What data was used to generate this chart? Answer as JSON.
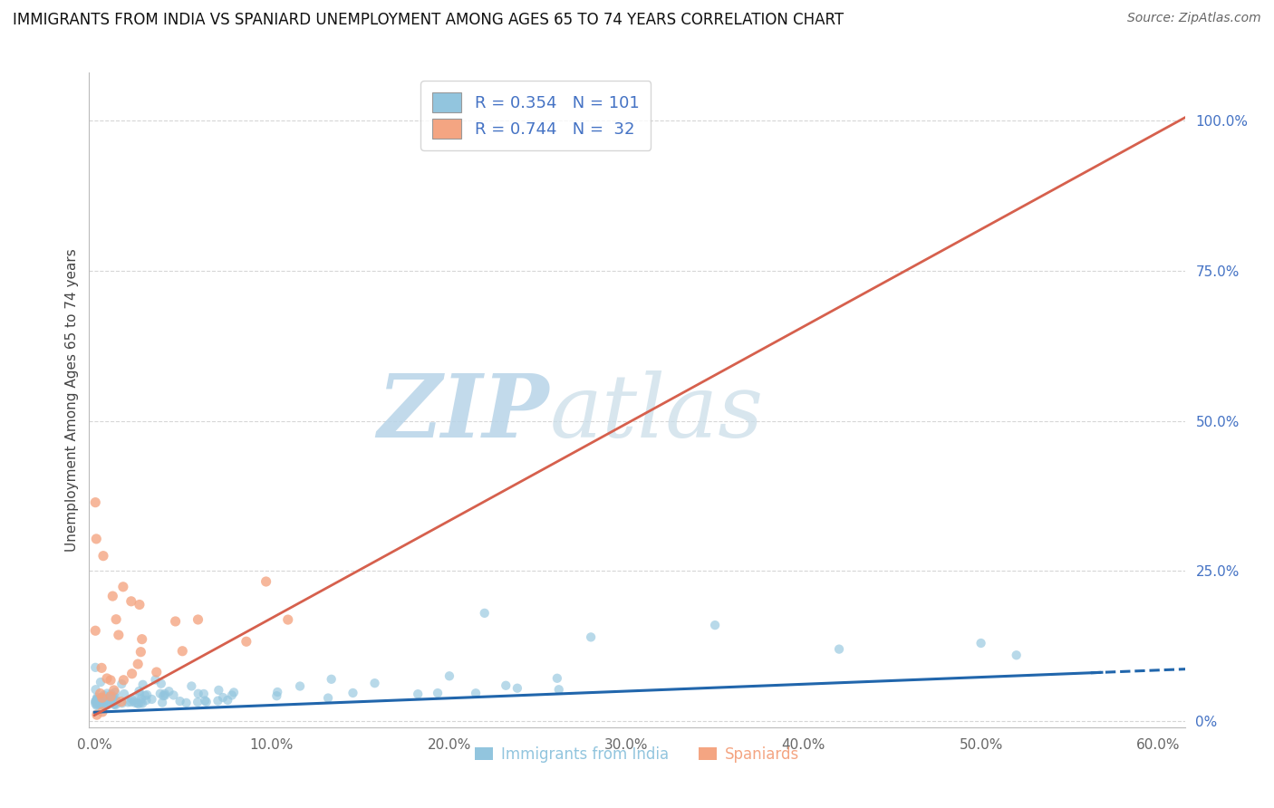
{
  "title": "IMMIGRANTS FROM INDIA VS SPANIARD UNEMPLOYMENT AMONG AGES 65 TO 74 YEARS CORRELATION CHART",
  "source": "Source: ZipAtlas.com",
  "ylabel": "Unemployment Among Ages 65 to 74 years",
  "legend_label1": "Immigrants from India",
  "legend_label2": "Spaniards",
  "R1": 0.354,
  "N1": 101,
  "R2": 0.744,
  "N2": 32,
  "color1": "#92c5de",
  "color2": "#f4a582",
  "line_color1": "#2166ac",
  "line_color2": "#d6604d",
  "xlim": [
    -0.003,
    0.615
  ],
  "ylim": [
    -0.01,
    1.08
  ],
  "xtick_vals": [
    0.0,
    0.1,
    0.2,
    0.3,
    0.4,
    0.5,
    0.6
  ],
  "xtick_labels": [
    "0.0%",
    "10.0%",
    "20.0%",
    "30.0%",
    "40.0%",
    "50.0%",
    "60.0%"
  ],
  "ytick_vals_right": [
    0.0,
    0.25,
    0.5,
    0.75,
    1.0
  ],
  "ytick_labels_right": [
    "0%",
    "25.0%",
    "50.0%",
    "75.0%",
    "100.0%"
  ],
  "watermark_zip": "ZIP",
  "watermark_atlas": "atlas",
  "background_color": "#ffffff",
  "grid_color": "#cccccc",
  "title_fontsize": 12,
  "label_fontsize": 11,
  "tick_color": "#666666",
  "right_tick_color": "#4472c4",
  "legend_R_color": "#4472c4",
  "legend_N_color": "#4472c4"
}
